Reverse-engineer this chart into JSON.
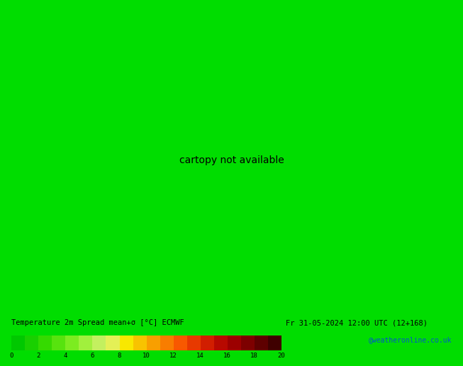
{
  "title_left": "Temperature 2m Spread mean+σ [°C] ECMWF",
  "title_right": "Fr 31-05-2024 12:00 UTC (12+168)",
  "cbar_ticks": [
    0,
    2,
    4,
    6,
    8,
    10,
    12,
    14,
    16,
    18,
    20
  ],
  "cmap_colors": [
    "#00c800",
    "#1ed200",
    "#3cdc00",
    "#64e614",
    "#8cf028",
    "#b4f050",
    "#dcf078",
    "#f8f000",
    "#f8c800",
    "#f8a000",
    "#f87800",
    "#f85000",
    "#e03000",
    "#c81400",
    "#aa0000",
    "#880000",
    "#660000",
    "#440000",
    "#220000"
  ],
  "background_color": "#00dd00",
  "map_bg": "#00cc00",
  "credit": "@weatheronline.co.uk",
  "label_bg": "#e0e0d0",
  "bottom_bar_color": "#f0f0f0",
  "fig_width": 6.34,
  "fig_height": 4.9,
  "lon_min": -85,
  "lon_max": 20,
  "lat_min": -60,
  "lat_max": 15
}
